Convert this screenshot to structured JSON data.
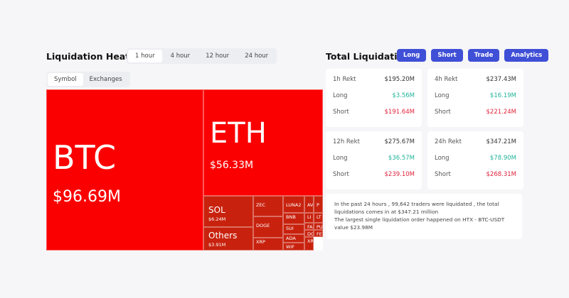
{
  "heatmap": {
    "title": "Liquidation Heatmap",
    "time_tabs": [
      "1 hour",
      "4 hour",
      "12 hour",
      "24 hour"
    ],
    "active_time": "1 hour",
    "view_tabs": [
      "Symbol",
      "Exchanges"
    ],
    "active_view": "Symbol",
    "cells": [
      {
        "symbol": "BTC",
        "value": "$96.69M"
      },
      {
        "symbol": "ETH",
        "value": "$56.33M"
      },
      {
        "symbol": "SOL",
        "value": "$6.24M"
      },
      {
        "symbol": "Others",
        "value": "$3.91M"
      },
      {
        "symbol": "ZEC"
      },
      {
        "symbol": "DOGE"
      },
      {
        "symbol": "XRP"
      },
      {
        "symbol": "LUNA2"
      },
      {
        "symbol": "BNB"
      },
      {
        "symbol": "SUI"
      },
      {
        "symbol": "ADA"
      },
      {
        "symbol": "WIF"
      },
      {
        "symbol": "AV"
      },
      {
        "symbol": "P"
      },
      {
        "symbol": "LI"
      },
      {
        "symbol": "LT"
      },
      {
        "symbol": "FA"
      },
      {
        "symbol": "PU"
      },
      {
        "symbol": "DC"
      },
      {
        "symbol": "FE"
      },
      {
        "symbol": "XR"
      }
    ],
    "colors": {
      "large": "#fa0000",
      "small": "#c8220e"
    }
  },
  "totals": {
    "title": "Total Liquidations",
    "buttons": [
      "Long",
      "Short",
      "Trade",
      "Analytics"
    ],
    "cards": [
      {
        "label": "1h Rekt",
        "total": "$195.20M",
        "long_label": "Long",
        "long": "$3.56M",
        "short_label": "Short",
        "short": "$191.64M"
      },
      {
        "label": "4h Rekt",
        "total": "$237.43M",
        "long_label": "Long",
        "long": "$16.19M",
        "short_label": "Short",
        "short": "$221.24M"
      },
      {
        "label": "12h Rekt",
        "total": "$275.67M",
        "long_label": "Long",
        "long": "$36.57M",
        "short_label": "Short",
        "short": "$239.10M"
      },
      {
        "label": "24h Rekt",
        "total": "$347.21M",
        "long_label": "Long",
        "long": "$78.90M",
        "short_label": "Short",
        "short": "$268.31M"
      }
    ],
    "summary_1": "In the past 24 hours , 99,642 traders were liquidated , the total liquidations comes in at $347.21 million",
    "summary_2": "The largest single liquidation order happened on HTX - BTC-USDT value $23.98M",
    "colors": {
      "button": "#3f4fd6",
      "long": "#22b39b",
      "short": "#e0243d"
    }
  }
}
